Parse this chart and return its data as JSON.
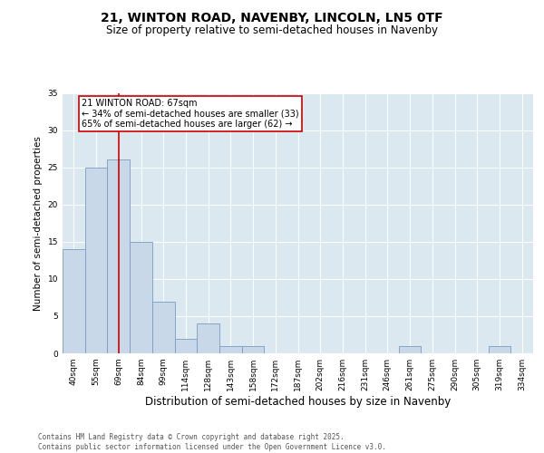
{
  "title1": "21, WINTON ROAD, NAVENBY, LINCOLN, LN5 0TF",
  "title2": "Size of property relative to semi-detached houses in Navenby",
  "xlabel": "Distribution of semi-detached houses by size in Navenby",
  "ylabel": "Number of semi-detached properties",
  "categories": [
    "40sqm",
    "55sqm",
    "69sqm",
    "84sqm",
    "99sqm",
    "114sqm",
    "128sqm",
    "143sqm",
    "158sqm",
    "172sqm",
    "187sqm",
    "202sqm",
    "216sqm",
    "231sqm",
    "246sqm",
    "261sqm",
    "275sqm",
    "290sqm",
    "305sqm",
    "319sqm",
    "334sqm"
  ],
  "values": [
    14,
    25,
    26,
    15,
    7,
    2,
    4,
    1,
    1,
    0,
    0,
    0,
    0,
    0,
    0,
    1,
    0,
    0,
    0,
    1,
    0
  ],
  "bar_color": "#c8d8e8",
  "bar_edge_color": "#7a9bbf",
  "vline_x": 2,
  "vline_color": "#cc0000",
  "annotation_line1": "21 WINTON ROAD: 67sqm",
  "annotation_line2": "← 34% of semi-detached houses are smaller (33)",
  "annotation_line3": "65% of semi-detached houses are larger (62) →",
  "ylim": [
    0,
    35
  ],
  "yticks": [
    0,
    5,
    10,
    15,
    20,
    25,
    30,
    35
  ],
  "background_color": "#dce8f0",
  "footer_text": "Contains HM Land Registry data © Crown copyright and database right 2025.\nContains public sector information licensed under the Open Government Licence v3.0.",
  "title1_fontsize": 10,
  "title2_fontsize": 8.5,
  "xlabel_fontsize": 8.5,
  "ylabel_fontsize": 7.5,
  "tick_fontsize": 6.5,
  "annotation_fontsize": 7,
  "footer_fontsize": 5.5
}
